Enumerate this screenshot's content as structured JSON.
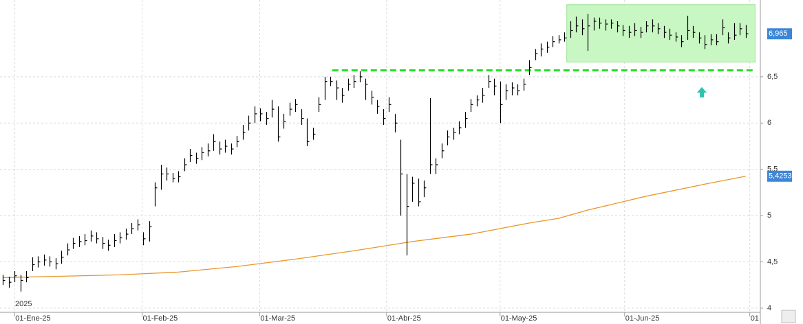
{
  "chart_data": {
    "type": "hlc",
    "year_label": "2025",
    "xlim": [
      -0.5,
      129.5
    ],
    "ylim": [
      3.955,
      7.33
    ],
    "xticks": [
      {
        "value": 2,
        "label": "01-Ene-25"
      },
      {
        "value": 23.8,
        "label": "01-Feb-25"
      },
      {
        "value": 43.9,
        "label": "01-Mar-25"
      },
      {
        "value": 65.6,
        "label": "01-Abr-25"
      },
      {
        "value": 85,
        "label": "01-May-25"
      },
      {
        "value": 106.3,
        "label": "01-Jun-25"
      },
      {
        "value": 127.7,
        "label": "01"
      }
    ],
    "yticks": [
      4,
      {
        "value": 4.5,
        "label": "4,5"
      },
      5,
      {
        "value": 5.5,
        "label": "5,5"
      },
      6,
      {
        "value": 6.5,
        "label": "6,5"
      }
    ],
    "grid": true,
    "bar_color": "#000000",
    "high": [
      4.36,
      4.34,
      4.4,
      4.36,
      4.4,
      4.55,
      4.56,
      4.58,
      4.56,
      4.54,
      4.62,
      4.7,
      4.76,
      4.78,
      4.8,
      4.84,
      4.82,
      4.77,
      4.74,
      4.8,
      4.82,
      4.86,
      4.92,
      4.96,
      4.82,
      4.94,
      5.36,
      5.55,
      5.52,
      5.46,
      5.48,
      5.62,
      5.72,
      5.68,
      5.74,
      5.78,
      5.88,
      5.8,
      5.82,
      5.78,
      5.86,
      5.98,
      6.08,
      6.18,
      6.16,
      6.12,
      6.25,
      6.18,
      6.1,
      6.22,
      6.26,
      6.15,
      6.05,
      5.95,
      6.28,
      6.5,
      6.5,
      6.46,
      6.38,
      6.48,
      6.52,
      6.56,
      6.48,
      6.35,
      6.25,
      6.15,
      6.28,
      6.1,
      5.82,
      5.45,
      5.42,
      5.4,
      5.38,
      6.27,
      5.62,
      5.78,
      5.92,
      5.95,
      6.02,
      6.12,
      6.26,
      6.3,
      6.38,
      6.52,
      6.48,
      6.45,
      6.42,
      6.44,
      6.42,
      6.48,
      6.68,
      6.8,
      6.86,
      6.88,
      6.94,
      6.95,
      6.98,
      7.1,
      7.15,
      7.12,
      7.18,
      7.14,
      7.14,
      7.12,
      7.12,
      7.1,
      7.06,
      7.05,
      7.08,
      7.04,
      7.1,
      7.12,
      7.08,
      7.05,
      7.02,
      6.98,
      6.95,
      7.16,
      7.05,
      6.98,
      6.95,
      6.96,
      6.96,
      7.12,
      6.98,
      7.08,
      7.08,
      7.06
    ],
    "low": [
      4.25,
      4.22,
      4.28,
      4.18,
      4.28,
      4.4,
      4.44,
      4.46,
      4.45,
      4.42,
      4.48,
      4.57,
      4.64,
      4.66,
      4.68,
      4.72,
      4.7,
      4.64,
      4.62,
      4.66,
      4.7,
      4.74,
      4.8,
      4.84,
      4.68,
      4.72,
      5.1,
      5.28,
      5.38,
      5.36,
      5.36,
      5.48,
      5.58,
      5.56,
      5.6,
      5.64,
      5.7,
      5.66,
      5.68,
      5.66,
      5.74,
      5.82,
      5.92,
      6.0,
      6.02,
      5.98,
      6.06,
      5.8,
      5.94,
      6.08,
      6.12,
      5.98,
      5.75,
      5.82,
      6.12,
      6.25,
      6.4,
      6.25,
      6.22,
      6.35,
      6.38,
      6.44,
      6.25,
      6.2,
      6.1,
      5.98,
      6.12,
      5.9,
      5.0,
      4.57,
      5.15,
      5.1,
      5.2,
      5.45,
      5.45,
      5.62,
      5.76,
      5.82,
      5.88,
      5.95,
      6.12,
      6.18,
      6.22,
      6.38,
      6.3,
      6.0,
      6.25,
      6.3,
      6.3,
      6.35,
      6.52,
      6.68,
      6.72,
      6.76,
      6.82,
      6.86,
      6.88,
      6.92,
      6.98,
      6.95,
      6.78,
      7.0,
      7.02,
      7.0,
      7.02,
      6.98,
      6.94,
      6.92,
      6.94,
      6.92,
      6.98,
      6.98,
      6.96,
      6.92,
      6.9,
      6.88,
      6.82,
      6.9,
      6.92,
      6.86,
      6.8,
      6.84,
      6.84,
      6.95,
      6.86,
      6.9,
      6.95,
      6.92
    ],
    "close": [
      4.3,
      4.28,
      4.35,
      4.3,
      4.33,
      4.47,
      4.5,
      4.52,
      4.5,
      4.48,
      4.55,
      4.63,
      4.7,
      4.72,
      4.73,
      4.78,
      4.75,
      4.7,
      4.68,
      4.73,
      4.76,
      4.8,
      4.86,
      4.9,
      4.75,
      4.88,
      5.3,
      5.45,
      5.45,
      5.4,
      5.42,
      5.55,
      5.65,
      5.62,
      5.68,
      5.7,
      5.8,
      5.72,
      5.75,
      5.72,
      5.8,
      5.9,
      6.0,
      6.1,
      6.1,
      6.05,
      6.15,
      5.85,
      6.02,
      6.15,
      6.2,
      6.05,
      5.8,
      5.88,
      6.2,
      6.45,
      6.45,
      6.38,
      6.3,
      6.42,
      6.45,
      6.5,
      6.42,
      6.28,
      6.18,
      6.05,
      6.2,
      6.0,
      5.45,
      5.1,
      5.35,
      5.15,
      5.3,
      5.55,
      5.55,
      5.7,
      5.85,
      5.9,
      5.95,
      6.05,
      6.2,
      6.25,
      6.3,
      6.45,
      6.4,
      6.2,
      6.35,
      6.38,
      6.35,
      6.42,
      6.6,
      6.75,
      6.8,
      6.82,
      6.88,
      6.9,
      6.92,
      7.0,
      7.05,
      7.02,
      7.05,
      7.1,
      7.08,
      7.07,
      7.08,
      7.05,
      7.0,
      6.98,
      7.0,
      6.98,
      7.05,
      7.05,
      7.02,
      6.98,
      6.95,
      6.93,
      6.88,
      7.0,
      6.98,
      6.92,
      6.85,
      6.9,
      6.88,
      7.03,
      6.92,
      6.95,
      7.02,
      6.965
    ],
    "moving_average": {
      "color": "#e8972a",
      "x": [
        0,
        20,
        30,
        40,
        50,
        60,
        70,
        80,
        90,
        95,
        100,
        110,
        120,
        127
      ],
      "values": [
        4.33,
        4.36,
        4.39,
        4.45,
        4.53,
        4.62,
        4.72,
        4.8,
        4.92,
        4.97,
        5.06,
        5.21,
        5.34,
        5.4253
      ]
    },
    "highlight_box": {
      "xlim": [
        96.4,
        128.6
      ],
      "ylim": [
        6.66,
        7.28
      ],
      "color": "#c9f7c3"
    },
    "support_line": {
      "value": 6.57,
      "xlim": [
        56.3,
        128.6
      ],
      "color": "#22dd22"
    },
    "arrow": {
      "x": 119.5,
      "y": 6.33,
      "color": "#2ec4b0"
    },
    "price_labels": [
      {
        "value": 6.965,
        "label": "6,965",
        "color": "#3b86d8"
      },
      {
        "value": 5.4253,
        "label": "5,4253",
        "color": "#3b86d8"
      }
    ]
  }
}
